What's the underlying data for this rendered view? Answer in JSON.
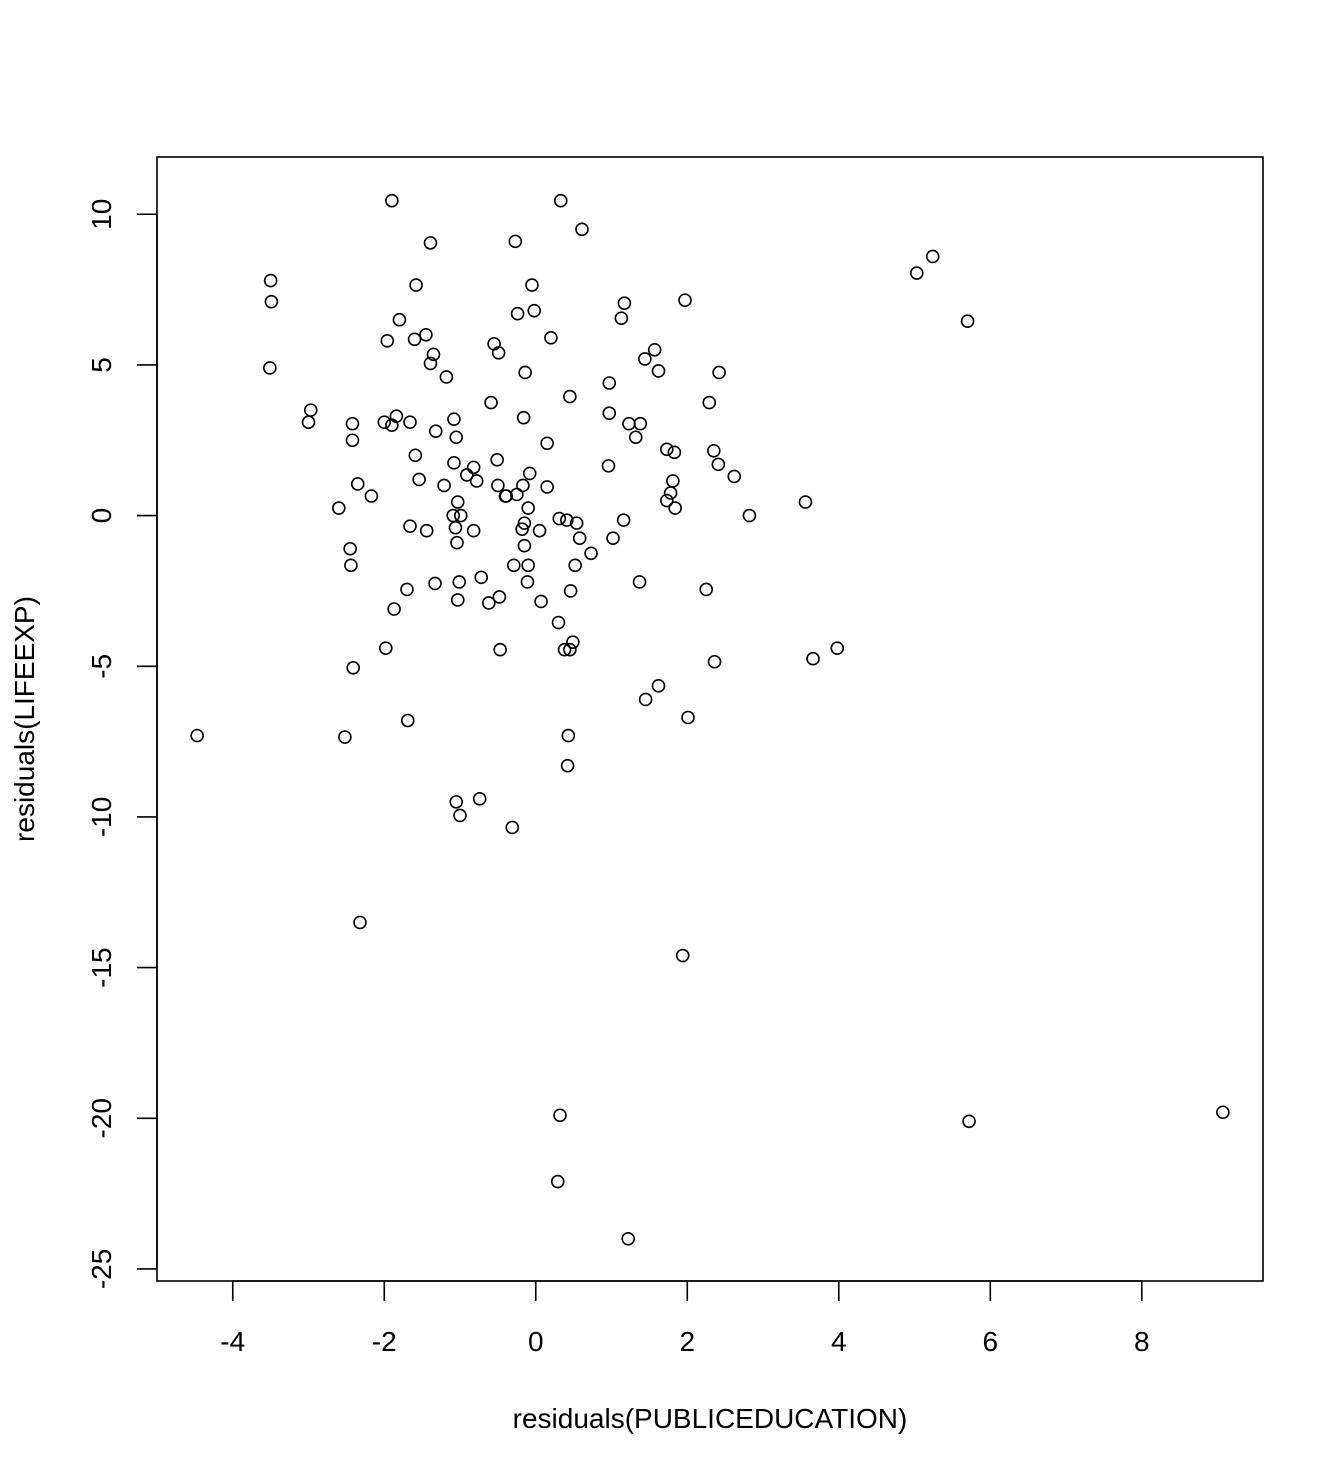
{
  "chart_data": {
    "type": "scatter",
    "title": "",
    "xlabel": "residuals(PUBLICEDUCATION)",
    "ylabel": "residuals(LIFEEXP)",
    "xlim": [
      -5.0,
      9.6
    ],
    "ylim": [
      -25.4,
      11.9
    ],
    "xticks": [
      -4,
      -2,
      0,
      2,
      4,
      6,
      8
    ],
    "yticks": [
      -25,
      -20,
      -15,
      -10,
      -5,
      0,
      5,
      10
    ],
    "xtick_labels": [
      "-4",
      "-2",
      "0",
      "2",
      "4",
      "6",
      "8"
    ],
    "ytick_labels": [
      "-25",
      "-20",
      "-15",
      "-10",
      "-5",
      "0",
      "5",
      "10"
    ],
    "grid": false,
    "legend": "none",
    "marker": "open-circle",
    "color": "#000000",
    "x": [
      -4.47,
      -3.5,
      -3.49,
      -3.51,
      -2.97,
      -3.0,
      -2.6,
      -2.52,
      -2.45,
      -2.44,
      -2.42,
      -2.42,
      -2.41,
      -2.35,
      -2.32,
      -2.17,
      -2.0,
      -1.98,
      -1.96,
      -1.9,
      -1.9,
      -1.84,
      -1.8,
      -1.87,
      -1.7,
      -1.66,
      -1.66,
      -1.69,
      -1.6,
      -1.59,
      -1.58,
      -1.54,
      -1.45,
      -1.44,
      -1.39,
      -1.39,
      -1.35,
      -1.33,
      -1.32,
      -1.21,
      -1.18,
      -1.09,
      -1.08,
      -1.08,
      -1.06,
      -1.05,
      -1.05,
      -1.03,
      -1.04,
      -1.03,
      -1.01,
      -1.0,
      -0.99,
      -0.91,
      -0.82,
      -0.82,
      -0.78,
      -0.74,
      -0.72,
      -0.62,
      -0.59,
      -0.55,
      -0.51,
      -0.5,
      -0.49,
      -0.48,
      -0.47,
      -0.4,
      -0.39,
      -0.31,
      -0.29,
      -0.27,
      -0.24,
      -0.25,
      -0.18,
      -0.17,
      -0.16,
      -0.15,
      -0.15,
      -0.14,
      -0.11,
      -0.1,
      -0.1,
      -0.08,
      -0.05,
      -0.02,
      0.05,
      0.07,
      0.15,
      0.15,
      0.2,
      0.31,
      0.33,
      0.32,
      0.29,
      0.3,
      0.38,
      0.41,
      0.42,
      0.43,
      0.45,
      0.46,
      0.45,
      0.49,
      0.52,
      0.54,
      0.58,
      0.61,
      0.73,
      0.97,
      0.97,
      0.96,
      1.02,
      1.13,
      1.16,
      1.17,
      1.22,
      1.23,
      1.32,
      1.37,
      1.38,
      1.44,
      1.45,
      1.57,
      1.62,
      1.62,
      1.73,
      1.73,
      1.78,
      1.81,
      1.83,
      1.84,
      1.94,
      1.97,
      2.01,
      2.25,
      2.29,
      2.35,
      2.36,
      2.41,
      2.42,
      2.62,
      2.82,
      3.56,
      3.66,
      3.98,
      5.03,
      5.24,
      5.7,
      5.72,
      9.07
    ],
    "y": [
      -7.3,
      7.8,
      7.1,
      4.9,
      3.5,
      3.1,
      0.25,
      -7.35,
      -1.1,
      -1.65,
      2.5,
      3.05,
      -5.05,
      1.05,
      -13.5,
      0.65,
      3.1,
      -4.4,
      5.8,
      3.0,
      10.45,
      3.3,
      6.5,
      -3.1,
      -2.45,
      3.1,
      -0.35,
      -6.8,
      5.85,
      2.0,
      7.65,
      1.2,
      6.0,
      -0.5,
      9.05,
      5.05,
      5.35,
      -2.25,
      2.8,
      1.0,
      4.6,
      0.0,
      1.75,
      3.2,
      -0.4,
      -9.5,
      2.6,
      0.45,
      -0.9,
      -2.8,
      -2.2,
      -9.95,
      0.0,
      1.35,
      -0.5,
      1.6,
      1.15,
      -9.4,
      -2.05,
      -2.9,
      3.75,
      5.7,
      1.85,
      1.0,
      5.4,
      -2.7,
      -4.45,
      0.65,
      0.65,
      -10.35,
      -1.65,
      9.1,
      6.7,
      0.7,
      -0.45,
      1.0,
      3.25,
      -0.25,
      -1.0,
      4.75,
      -2.2,
      -1.65,
      0.25,
      1.4,
      7.65,
      6.8,
      -0.5,
      -2.85,
      2.4,
      0.95,
      5.9,
      -0.1,
      10.45,
      -19.9,
      -22.1,
      -3.55,
      -4.45,
      -0.15,
      -8.3,
      -7.3,
      3.95,
      -2.5,
      -4.45,
      -4.2,
      -1.65,
      -0.25,
      -0.75,
      9.5,
      -1.25,
      4.4,
      3.4,
      1.65,
      -0.75,
      6.55,
      -0.15,
      7.05,
      -24.0,
      3.05,
      2.6,
      -2.2,
      3.05,
      5.2,
      -6.1,
      5.5,
      4.8,
      -5.65,
      0.5,
      2.2,
      0.75,
      1.15,
      2.1,
      0.25,
      -14.6,
      7.15,
      -6.7,
      -2.45,
      3.75,
      2.15,
      -4.85,
      1.7,
      4.75,
      1.3,
      0.0,
      0.45,
      -4.75,
      -4.4,
      8.05,
      8.6,
      6.45,
      -20.1,
      -19.8
    ]
  }
}
